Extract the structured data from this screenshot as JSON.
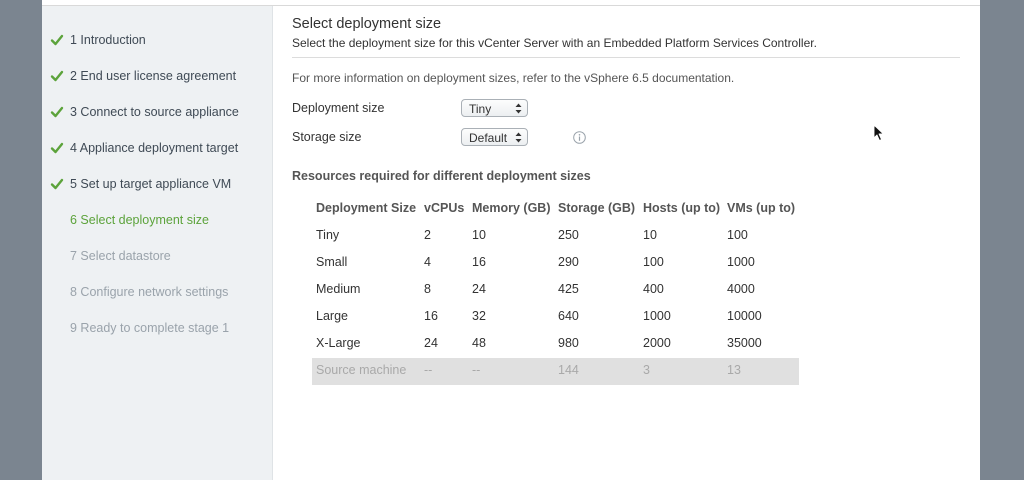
{
  "sidebar": {
    "steps": [
      {
        "label": "1 Introduction",
        "state": "done"
      },
      {
        "label": "2 End user license agreement",
        "state": "done"
      },
      {
        "label": "3 Connect to source appliance",
        "state": "done"
      },
      {
        "label": "4 Appliance deployment target",
        "state": "done"
      },
      {
        "label": "5 Set up target appliance VM",
        "state": "done"
      },
      {
        "label": "6 Select deployment size",
        "state": "active"
      },
      {
        "label": "7 Select datastore",
        "state": "pending"
      },
      {
        "label": "8 Configure network settings",
        "state": "pending"
      },
      {
        "label": "9 Ready to complete stage 1",
        "state": "pending"
      }
    ],
    "check_icon": "check-icon",
    "colors": {
      "check": "#5ca33b",
      "active": "#5ca33b",
      "pending": "#9aa3ab"
    }
  },
  "main": {
    "title": "Select deployment size",
    "subtitle": "Select the deployment size for this vCenter Server with an Embedded Platform Services Controller.",
    "info_text": "For more information on deployment sizes, refer to the vSphere 6.5 documentation.",
    "deployment_size": {
      "label": "Deployment size",
      "value": "Tiny"
    },
    "storage_size": {
      "label": "Storage size",
      "value": "Default",
      "info_icon": "info-icon"
    },
    "resources_title": "Resources required for different deployment sizes",
    "table": {
      "columns": [
        "Deployment Size",
        "vCPUs",
        "Memory (GB)",
        "Storage (GB)",
        "Hosts (up to)",
        "VMs (up to)"
      ],
      "rows": [
        [
          "Tiny",
          "2",
          "10",
          "250",
          "10",
          "100"
        ],
        [
          "Small",
          "4",
          "16",
          "290",
          "100",
          "1000"
        ],
        [
          "Medium",
          "8",
          "24",
          "425",
          "400",
          "4000"
        ],
        [
          "Large",
          "16",
          "32",
          "640",
          "1000",
          "10000"
        ],
        [
          "X-Large",
          "24",
          "48",
          "980",
          "2000",
          "35000"
        ]
      ],
      "source_row": [
        "Source machine",
        "--",
        "--",
        "144",
        "3",
        "13"
      ]
    }
  }
}
